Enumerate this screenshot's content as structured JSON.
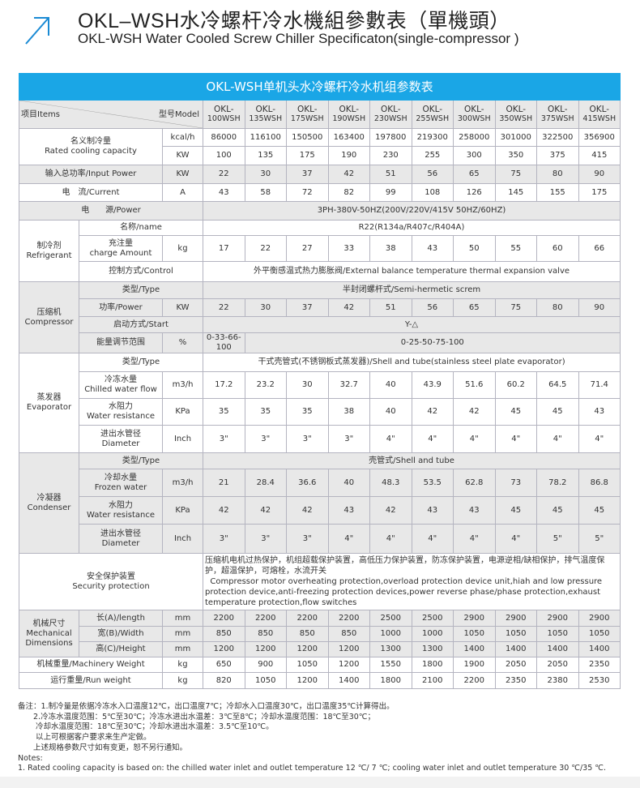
{
  "header": {
    "title_cn": "OKL–WSH水冷螺杆冷水機組參數表（單機頭）",
    "title_en": "OKL-WSH Water Cooled Screw Chiller Specificaton(single-compressor )",
    "accent": "#1a8ad4"
  },
  "table": {
    "title": "OKL-WSH单机头水冷螺杆冷水机组参数表",
    "items_label": "项目Items",
    "model_label": "型号Model",
    "models": [
      "OKL-100WSH",
      "OKL-135WSH",
      "OKL-175WSH",
      "OKL-190WSH",
      "OKL-230WSH",
      "OKL-255WSH",
      "OKL-300WSH",
      "OKL-350WSH",
      "OKL-375WSH",
      "OKL-415WSH"
    ],
    "cooling": {
      "label_cn": "名义制冷量",
      "label_en": "Rated cooling capacity",
      "unit1": "kcal/h",
      "kcal": [
        86000,
        116100,
        150500,
        163400,
        197800,
        219300,
        258000,
        301000,
        322500,
        356900
      ],
      "unit2": "KW",
      "kw": [
        100,
        135,
        175,
        190,
        230,
        255,
        300,
        350,
        375,
        415
      ]
    },
    "input_power": {
      "label": "输入总功率/Input Power",
      "unit": "KW",
      "values": [
        22,
        30,
        37,
        42,
        51,
        56,
        65,
        75,
        80,
        90
      ]
    },
    "current": {
      "label": "电　流/Current",
      "unit": "A",
      "values": [
        43,
        58,
        72,
        82,
        99,
        108,
        126,
        145,
        155,
        175
      ]
    },
    "power": {
      "label": "电　　源/Power",
      "value": "3PH-380V-50HZ(200V/220V/415V  50HZ/60HZ)"
    },
    "refrigerant": {
      "group_cn": "制冷剂",
      "group_en": "Refrigerant",
      "name_label": "名称/name",
      "name_value": "R22(R134a/R407c/R404A)",
      "charge_cn": "充注量",
      "charge_en": "charge Amount",
      "charge_unit": "kg",
      "charge": [
        17,
        22,
        27,
        33,
        38,
        43,
        50,
        55,
        60,
        66
      ],
      "control_label": "控制方式/Control",
      "control_value": "外平衡感温式热力膨胀阀/External balance temperature thermal expansion valve"
    },
    "compressor": {
      "group_cn": "压缩机",
      "group_en": "Compressor",
      "type_label": "类型/Type",
      "type_value": "半封闭螺杆式/Semi-hermetic screm",
      "power_label": "功率/Power",
      "power_unit": "KW",
      "power": [
        22,
        30,
        37,
        42,
        51,
        56,
        65,
        75,
        80,
        90
      ],
      "start_label": "启动方式/Start",
      "start_value": "Y-△",
      "energy_label": "能量调节范围",
      "energy_unit": "%",
      "energy_1": "0-33-66-100",
      "energy_2": "0-25-50-75-100"
    },
    "evaporator": {
      "group_cn": "蒸发器",
      "group_en": "Evaporator",
      "type_label": "类型/Type",
      "type_value": "干式壳管式(不锈钢板式蒸发器)/Shell and tube(stainless steel plate evaporator)",
      "flow_cn": "冷冻水量",
      "flow_en": "Chilled water flow",
      "flow_unit": "m3/h",
      "flow": [
        17.2,
        23.2,
        30,
        32.7,
        40,
        43.9,
        51.6,
        60.2,
        64.5,
        71.4
      ],
      "res_cn": "水阻力",
      "res_en": "Water resistance",
      "res_unit": "KPa",
      "res": [
        35,
        35,
        35,
        38,
        40,
        42,
        42,
        45,
        45,
        43
      ],
      "dia_cn": "进出水管径",
      "dia_en": "Diameter",
      "dia_unit": "Inch",
      "dia": [
        "3\"",
        "3\"",
        "3\"",
        "3\"",
        "4\"",
        "4\"",
        "4\"",
        "4\"",
        "4\"",
        "4\""
      ]
    },
    "condenser": {
      "group_cn": "冷凝器",
      "group_en": "Condenser",
      "type_label": "类型/Type",
      "type_value": "壳管式/Shell and tube",
      "flow_cn": "冷却水量",
      "flow_en": "Frozen water",
      "flow_unit": "m3/h",
      "flow": [
        21,
        28.4,
        36.6,
        40,
        48.3,
        53.5,
        62.8,
        73,
        78.2,
        86.8
      ],
      "res_cn": "水阻力",
      "res_en": "Water resistance",
      "res_unit": "KPa",
      "res": [
        42,
        42,
        42,
        43,
        42,
        43,
        43,
        45,
        45,
        45
      ],
      "dia_cn": "进出水管径",
      "dia_en": "Diameter",
      "dia_unit": "Inch",
      "dia": [
        "3\"",
        "3\"",
        "3\"",
        "4\"",
        "4\"",
        "4\"",
        "4\"",
        "4\"",
        "5\"",
        "5\""
      ]
    },
    "security": {
      "label_cn": "安全保护装置",
      "label_en": "Security protection",
      "text_cn": "压缩机电机过热保护，机组超载保护装置，高低压力保护装置，防冻保护装置，电源逆相/缺相保护，排气温度保护，超温保护，可熔栓，水流开关",
      "text_en": "Compressor motor overheating protection,overload protection device unit,hiah and low pressure protection device,anti-freezing protection devices,power reverse phase/phase protection,exhaust temperature protection,flow switches"
    },
    "dimensions": {
      "group_cn": "机械尺寸",
      "group_en1": "Mechanical",
      "group_en2": "Dimensions",
      "length_label": "长(A)/length",
      "width_label": "宽(B)/Width",
      "height_label": "高(C)/Height",
      "unit": "mm",
      "length": [
        2200,
        2200,
        2200,
        2200,
        2500,
        2500,
        2900,
        2900,
        2900,
        2900
      ],
      "width": [
        850,
        850,
        850,
        850,
        1000,
        1000,
        1050,
        1050,
        1050,
        1050
      ],
      "height": [
        1200,
        1200,
        1200,
        1200,
        1300,
        1300,
        1400,
        1400,
        1400,
        1400
      ]
    },
    "machinery_weight": {
      "label": "机械重量/Machinery Weight",
      "unit": "kg",
      "values": [
        650,
        900,
        1050,
        1200,
        1550,
        1800,
        1900,
        2050,
        2050,
        2350
      ]
    },
    "run_weight": {
      "label": "运行重量/Run weight",
      "unit": "kg",
      "values": [
        820,
        1050,
        1200,
        1400,
        1800,
        2100,
        2200,
        2350,
        2380,
        2530
      ]
    }
  },
  "notes": {
    "lines": [
      "备注：1.制冷量是依据冷冻水入口温度12℃，出口温度7℃；冷却水入口温度30℃，出口温度35℃计算得出。",
      "　　2.冷冻水温度范围：5℃至30℃；冷冻水进出水温差：3℃至8℃；冷却水温度范围：18℃至30℃；",
      "　　 冷却水温度范围：18℃至30℃；冷却水进出水温差：3.5℃至10℃。",
      "　　 以上可根据客户要求来生产定做。",
      "　　上述规格参数尺寸如有变更，恕不另行通知。",
      "Notes:",
      "1. Rated cooling capacity is based on: the chilled water inlet and outlet temperature 12 ℃/ 7 ℃; cooling water inlet and outlet temperature 30 ℃/35 ℃."
    ]
  }
}
